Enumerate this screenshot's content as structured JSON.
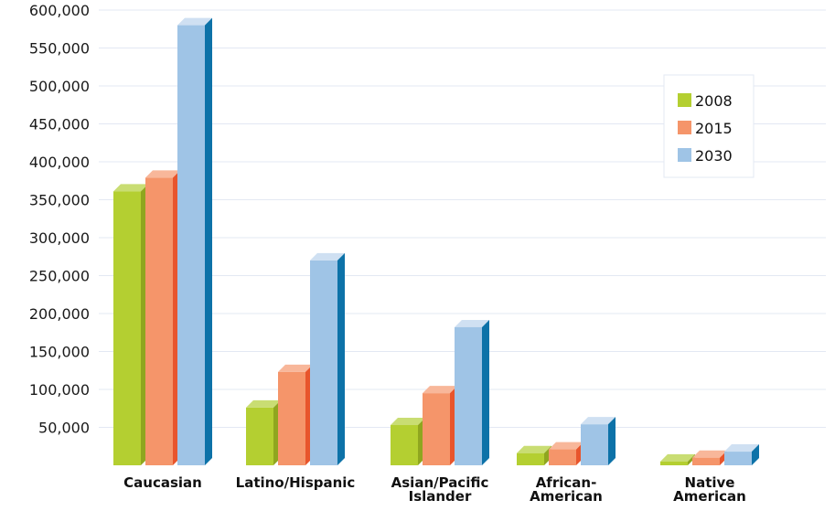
{
  "chart_data": {
    "type": "bar",
    "title": "",
    "xlabel": "",
    "ylabel": "",
    "categories": [
      [
        "Caucasian"
      ],
      [
        "Latino/Hispanic"
      ],
      [
        "Asian/Pacific",
        "Islander"
      ],
      [
        "African-",
        "American"
      ],
      [
        "Native",
        "American"
      ]
    ],
    "series": [
      {
        "name": "2008",
        "values": [
          361000,
          76000,
          53000,
          16000,
          5000
        ],
        "color": "#b4cf31",
        "side_color": "#8fa61f",
        "top_color": "#c9dd73"
      },
      {
        "name": "2015",
        "values": [
          379000,
          123000,
          95000,
          21000,
          10000
        ],
        "color": "#f5956a",
        "side_color": "#e8552c",
        "top_color": "#f8b79a"
      },
      {
        "name": "2030",
        "values": [
          580000,
          270000,
          182000,
          54000,
          18000
        ],
        "color": "#9fc4e6",
        "side_color": "#0d72a8",
        "top_color": "#cfe0f2"
      }
    ],
    "yticks": [
      "600,000",
      "550,000",
      "500,000",
      "450,000",
      "400,000",
      "350,000",
      "300,000",
      "250,000",
      "200,000",
      "150,000",
      "100,000",
      "50,000"
    ],
    "ytick_values": [
      600000,
      550000,
      500000,
      450000,
      400000,
      350000,
      300000,
      250000,
      200000,
      150000,
      100000,
      50000
    ],
    "ylim": [
      0,
      600000
    ],
    "grid": true,
    "legend_position": "top-right"
  }
}
